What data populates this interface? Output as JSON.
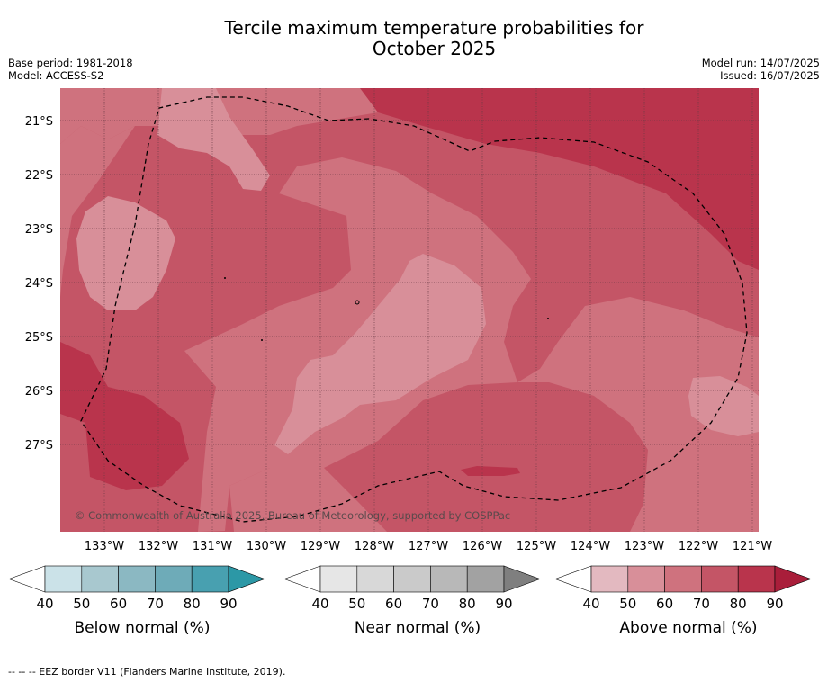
{
  "title_line1": "Tercile maximum temperature probabilities for",
  "title_line2": "October 2025",
  "base_period": "Base period: 1981-2018",
  "model": "Model: ACCESS-S2",
  "model_run": "Model run: 14/07/2025",
  "issued": "Issued: 16/07/2025",
  "copyright": "© Commonwealth of Australia 2025, Bureau of Meteorology, supported by COSPPac",
  "lat_labels": [
    "21°S",
    "22°S",
    "23°S",
    "24°S",
    "25°S",
    "26°S",
    "27°S"
  ],
  "lon_labels": [
    "133°W",
    "132°W",
    "131°W",
    "130°W",
    "129°W",
    "128°W",
    "127°W",
    "126°W",
    "125°W",
    "124°W",
    "123°W",
    "122°W",
    "121°W"
  ],
  "colorbars": [
    {
      "name": "Below normal (%)",
      "ticks": [
        "40",
        "50",
        "60",
        "70",
        "80",
        "90"
      ],
      "colors": [
        "#cbe2e8",
        "#a8c8cf",
        "#8bb8c2",
        "#6eabb8",
        "#48a0b0"
      ],
      "extend_color": "#2c98a6"
    },
    {
      "name": "Near normal (%)",
      "ticks": [
        "40",
        "50",
        "60",
        "70",
        "80",
        "90"
      ],
      "colors": [
        "#e6e6e6",
        "#d8d8d8",
        "#cacaca",
        "#b8b8b8",
        "#a2a2a2"
      ],
      "extend_color": "#7f7f7f"
    },
    {
      "name": "Above normal (%)",
      "ticks": [
        "40",
        "50",
        "60",
        "70",
        "80",
        "90"
      ],
      "colors": [
        "#e3b9c0",
        "#d88f99",
        "#cf727e",
        "#c45566",
        "#b9344c"
      ],
      "extend_color": "#a91e3a"
    }
  ],
  "footer": "--  --  -- EEZ border V11 (Flanders Marine Institute, 2019).",
  "map_colors": {
    "p90": "#b9344c",
    "p80": "#c45566",
    "p70": "#cf727e",
    "p60": "#d88f99",
    "land": "#000000"
  }
}
